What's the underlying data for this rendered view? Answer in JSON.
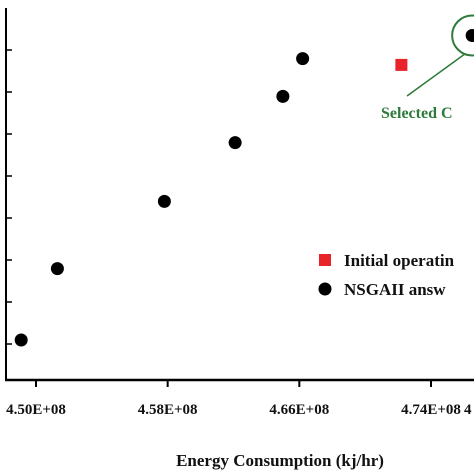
{
  "chart_data": {
    "type": "scatter",
    "xlabel": "Energy Consumption (kj/hr)",
    "x_ticks": [
      "4.50E+08",
      "4.58E+08",
      "4.66E+08",
      "4.74E+08",
      "4"
    ],
    "xlim": [
      448000000.0,
      480000000.0
    ],
    "series": [
      {
        "name": "NSGAII answ",
        "marker": "circle",
        "color": "#000000",
        "x": [
          449100000.0,
          451300000.0,
          457800000.0,
          462100000.0,
          465000000.0,
          466200000.0,
          476500000.0
        ],
        "y": [
          1.0,
          2.7,
          4.3,
          5.7,
          6.8,
          7.7,
          8.25
        ]
      },
      {
        "name": "Initial operatin",
        "marker": "square",
        "color": "#e8232a",
        "x": [
          472200000.0
        ],
        "y": [
          7.55
        ]
      }
    ],
    "annotations": [
      {
        "text": "Selected C",
        "color": "#2e7a3a",
        "x": 476500000.0,
        "y": 8.25
      }
    ],
    "legend_position": "right"
  }
}
